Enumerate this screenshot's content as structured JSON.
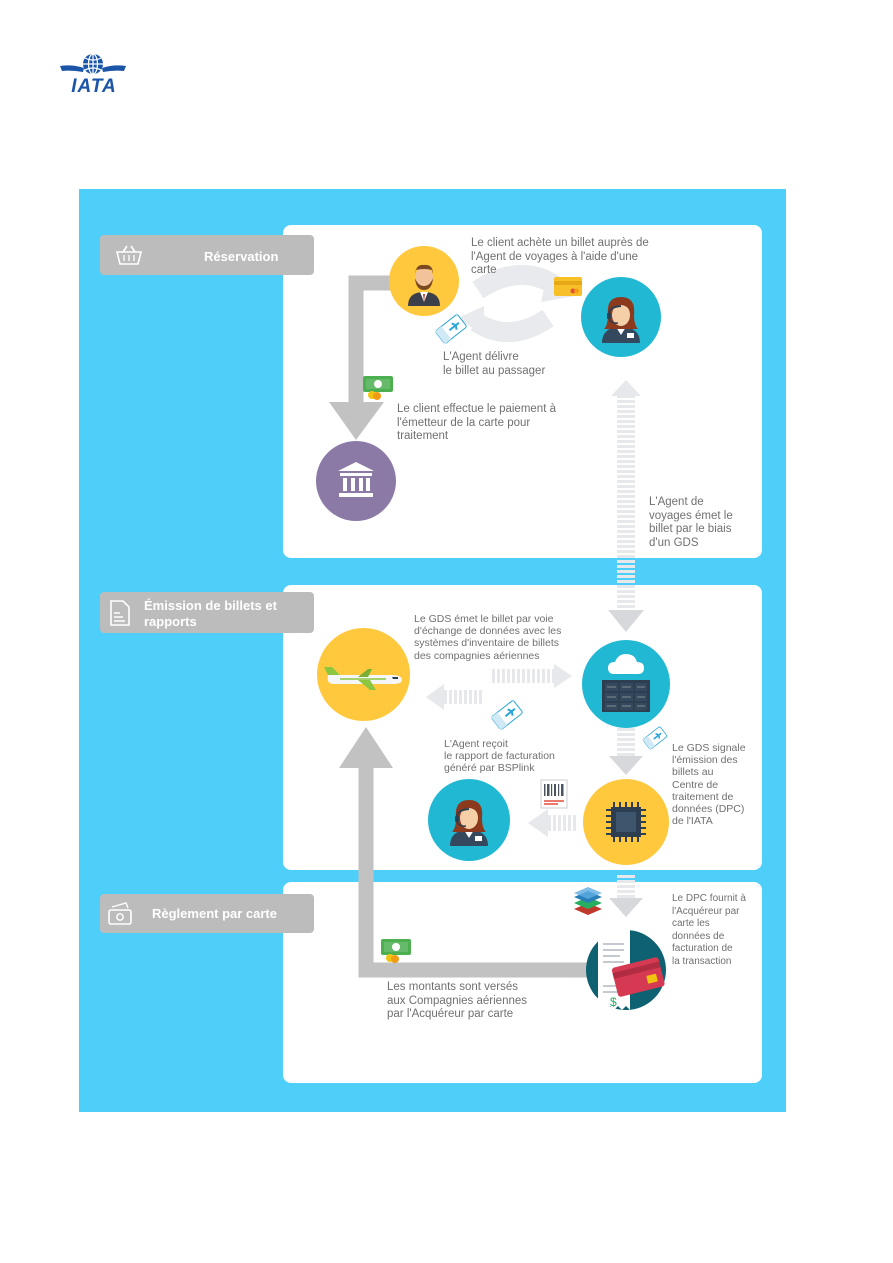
{
  "header": {
    "logo_text": "IATA"
  },
  "sections": {
    "reservation": {
      "label": "Réservation",
      "icon": "basket-icon"
    },
    "emission": {
      "label_line1": "Émission de billets et",
      "label_line2": "rapports",
      "icon": "document-icon"
    },
    "settlement": {
      "label": "Règlement par carte",
      "icon": "cash-icon"
    }
  },
  "captions": {
    "client_buys": [
      "Le client achète un billet auprès de",
      "l'Agent de voyages à l'aide d'une",
      "carte"
    ],
    "agent_delivers": [
      "L'Agent délivre",
      "le billet au passager"
    ],
    "client_pays": [
      "Le client effectue le paiement à",
      "l'émetteur de la carte pour",
      "traitement"
    ],
    "agent_issues_gds": [
      "L'Agent de",
      "voyages émet le",
      "billet par le biais",
      "d'un GDS"
    ],
    "gds_issues": [
      "Le GDS émet le billet par voie",
      "d'échange de données avec les",
      "systèmes d'inventaire de billets",
      "des compagnies aériennes"
    ],
    "agent_receives": [
      "L'Agent reçoit",
      "le rapport de facturation",
      "généré par BSPlink"
    ],
    "gds_reports": [
      "Le GDS signale",
      "l'émission des",
      "billets au",
      "Centre de",
      "traitement de",
      "données (DPC)",
      "de l'IATA"
    ],
    "dpc_provides": [
      "Le DPC fournit à",
      "l'Acquéreur par",
      "carte les",
      "données de",
      "facturation de",
      "la transaction"
    ],
    "amounts_paid": [
      "Les montants sont versés",
      "aux Compagnies aériennes",
      "par l'Acquéreur par carte"
    ]
  },
  "colors": {
    "background": "#4dcff9",
    "panel": "#ffffff",
    "label": "#bcbcbc",
    "arrow": "#c2c2c2",
    "yellow": "#ffc83d",
    "teal": "#21b8d4",
    "purple": "#8c7aa6",
    "dark_teal": "#0e6170",
    "brand_blue": "#1a55a8"
  }
}
